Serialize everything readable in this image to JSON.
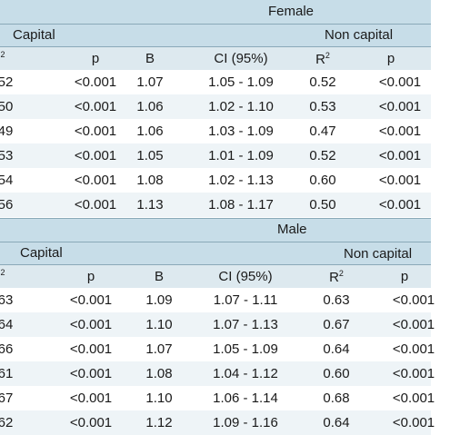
{
  "female": {
    "title": "Female",
    "capital_label": "Capital",
    "non_capital_label": "Non capital",
    "columns": [
      "²",
      "p",
      "B",
      "CI (95%)",
      "R",
      "p"
    ],
    "r_sup": "2",
    "rows": [
      [
        "52",
        "<0.001",
        "1.07",
        "1.05 - 1.09",
        "0.52",
        "<0.001"
      ],
      [
        "50",
        "<0.001",
        "1.06",
        "1.02 - 1.10",
        "0.53",
        "<0.001"
      ],
      [
        "49",
        "<0.001",
        "1.06",
        "1.03 - 1.09",
        "0.47",
        "<0.001"
      ],
      [
        "53",
        "<0.001",
        "1.05",
        "1.01 - 1.09",
        "0.52",
        "<0.001"
      ],
      [
        "54",
        "<0.001",
        "1.08",
        "1.02 - 1.13",
        "0.60",
        "<0.001"
      ],
      [
        "56",
        "<0.001",
        "1.13",
        "1.08 - 1.17",
        "0.50",
        "<0.001"
      ]
    ]
  },
  "male": {
    "title": "Male",
    "capital_label": "Capital",
    "non_capital_label": "Non capital",
    "columns": [
      "²",
      "p",
      "B",
      "CI (95%)",
      "R",
      "p"
    ],
    "r_sup": "2",
    "rows": [
      [
        "63",
        "<0.001",
        "1.09",
        "1.07 - 1.11",
        "0.63",
        "<0.001"
      ],
      [
        "64",
        "<0.001",
        "1.10",
        "1.07 - 1.13",
        "0.67",
        "<0.001"
      ],
      [
        "66",
        "<0.001",
        "1.07",
        "1.05 - 1.09",
        "0.64",
        "<0.001"
      ],
      [
        "61",
        "<0.001",
        "1.08",
        "1.04 - 1.12",
        "0.60",
        "<0.001"
      ],
      [
        "67",
        "<0.001",
        "1.10",
        "1.06 - 1.14",
        "0.68",
        "<0.001"
      ],
      [
        "62",
        "<0.001",
        "1.12",
        "1.09 - 1.16",
        "0.64",
        "<0.001"
      ]
    ]
  }
}
